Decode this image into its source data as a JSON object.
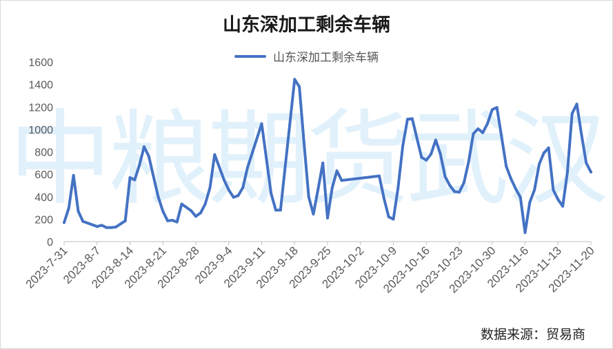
{
  "title": "山东深加工剩余车辆",
  "watermark": "中粮期货武汉",
  "source": "数据来源：贸易商",
  "colors": {
    "line": "#4472c4",
    "axis": "#bfbfbf"
  },
  "chart_data": {
    "type": "line",
    "title": "山东深加工剩余车辆",
    "legend": "top-center",
    "ylim": [
      0,
      1600
    ],
    "yticks": [
      0,
      200,
      400,
      600,
      800,
      1000,
      1200,
      1400,
      1600
    ],
    "xticks": [
      "2023-7-31",
      "2023-8-7",
      "2023-8-14",
      "2023-8-21",
      "2023-8-28",
      "2023-9-4",
      "2023-9-11",
      "2023-9-18",
      "2023-9-25",
      "2023-10-2",
      "2023-10-9",
      "2023-10-16",
      "2023-10-23",
      "2023-10-30",
      "2023-11-6",
      "2023-11-13",
      "2023-11-20"
    ],
    "x_start": "2023-07-31",
    "series": [
      {
        "name": "山东深加工剩余车辆",
        "color": "#4472c4",
        "points": [
          [
            "2023-07-31",
            170
          ],
          [
            "2023-08-01",
            300
          ],
          [
            "2023-08-02",
            590
          ],
          [
            "2023-08-03",
            270
          ],
          [
            "2023-08-04",
            180
          ],
          [
            "2023-08-06",
            150
          ],
          [
            "2023-08-07",
            135
          ],
          [
            "2023-08-08",
            145
          ],
          [
            "2023-08-09",
            125
          ],
          [
            "2023-08-10",
            125
          ],
          [
            "2023-08-11",
            130
          ],
          [
            "2023-08-13",
            185
          ],
          [
            "2023-08-14",
            570
          ],
          [
            "2023-08-15",
            550
          ],
          [
            "2023-08-16",
            680
          ],
          [
            "2023-08-17",
            845
          ],
          [
            "2023-08-18",
            760
          ],
          [
            "2023-08-20",
            400
          ],
          [
            "2023-08-21",
            270
          ],
          [
            "2023-08-22",
            185
          ],
          [
            "2023-08-23",
            190
          ],
          [
            "2023-08-24",
            175
          ],
          [
            "2023-08-25",
            335
          ],
          [
            "2023-08-27",
            275
          ],
          [
            "2023-08-28",
            225
          ],
          [
            "2023-08-29",
            255
          ],
          [
            "2023-08-30",
            335
          ],
          [
            "2023-08-31",
            480
          ],
          [
            "2023-09-01",
            775
          ],
          [
            "2023-09-03",
            550
          ],
          [
            "2023-09-04",
            460
          ],
          [
            "2023-09-05",
            395
          ],
          [
            "2023-09-06",
            410
          ],
          [
            "2023-09-07",
            480
          ],
          [
            "2023-09-08",
            660
          ],
          [
            "2023-09-11",
            1050
          ],
          [
            "2023-09-12",
            740
          ],
          [
            "2023-09-13",
            430
          ],
          [
            "2023-09-14",
            280
          ],
          [
            "2023-09-15",
            280
          ],
          [
            "2023-09-18",
            1445
          ],
          [
            "2023-09-19",
            1380
          ],
          [
            "2023-09-20",
            880
          ],
          [
            "2023-09-21",
            400
          ],
          [
            "2023-09-22",
            245
          ],
          [
            "2023-09-23",
            470
          ],
          [
            "2023-09-24",
            700
          ],
          [
            "2023-09-25",
            210
          ],
          [
            "2023-09-26",
            480
          ],
          [
            "2023-09-27",
            630
          ],
          [
            "2023-09-28",
            545
          ],
          [
            "2023-10-06",
            585
          ],
          [
            "2023-10-07",
            385
          ],
          [
            "2023-10-08",
            220
          ],
          [
            "2023-10-09",
            200
          ],
          [
            "2023-10-10",
            480
          ],
          [
            "2023-10-11",
            850
          ],
          [
            "2023-10-12",
            1090
          ],
          [
            "2023-10-13",
            1095
          ],
          [
            "2023-10-15",
            750
          ],
          [
            "2023-10-16",
            725
          ],
          [
            "2023-10-17",
            780
          ],
          [
            "2023-10-18",
            905
          ],
          [
            "2023-10-19",
            780
          ],
          [
            "2023-10-20",
            580
          ],
          [
            "2023-10-21",
            500
          ],
          [
            "2023-10-22",
            445
          ],
          [
            "2023-10-23",
            440
          ],
          [
            "2023-10-24",
            525
          ],
          [
            "2023-10-25",
            710
          ],
          [
            "2023-10-26",
            960
          ],
          [
            "2023-10-27",
            1005
          ],
          [
            "2023-10-28",
            970
          ],
          [
            "2023-10-29",
            1050
          ],
          [
            "2023-10-30",
            1175
          ],
          [
            "2023-10-31",
            1195
          ],
          [
            "2023-11-02",
            670
          ],
          [
            "2023-11-03",
            560
          ],
          [
            "2023-11-04",
            470
          ],
          [
            "2023-11-05",
            395
          ],
          [
            "2023-11-06",
            80
          ],
          [
            "2023-11-07",
            350
          ],
          [
            "2023-11-08",
            460
          ],
          [
            "2023-11-09",
            690
          ],
          [
            "2023-11-10",
            790
          ],
          [
            "2023-11-11",
            835
          ],
          [
            "2023-11-12",
            460
          ],
          [
            "2023-11-13",
            375
          ],
          [
            "2023-11-14",
            315
          ],
          [
            "2023-11-15",
            620
          ],
          [
            "2023-11-16",
            1140
          ],
          [
            "2023-11-17",
            1225
          ],
          [
            "2023-11-18",
            950
          ],
          [
            "2023-11-19",
            700
          ],
          [
            "2023-11-20",
            620
          ]
        ]
      }
    ]
  }
}
